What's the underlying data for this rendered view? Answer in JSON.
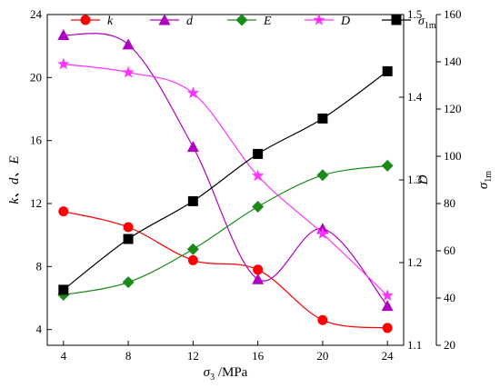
{
  "chart_data": {
    "type": "line",
    "x": [
      4,
      8,
      12,
      16,
      20,
      24
    ],
    "xlim": [
      3,
      25
    ],
    "xticks": [
      4,
      8,
      12,
      16,
      20,
      24
    ],
    "xlabel_main": "σ",
    "xlabel_sub": "3",
    "xlabel_unit": " /MPa",
    "axes": {
      "left": {
        "label": "k、d、E",
        "range": [
          3,
          24
        ],
        "ticks": [
          4,
          8,
          12,
          16,
          20,
          24
        ]
      },
      "right1": {
        "label": "D",
        "range": [
          1.1,
          1.5
        ],
        "ticks": [
          "1.1",
          "1.2",
          "1.3",
          "1.4",
          "1.5"
        ]
      },
      "right2": {
        "label_main": "σ",
        "label_sub": "1m",
        "range": [
          20,
          160
        ],
        "ticks": [
          20,
          40,
          60,
          80,
          100,
          120,
          140,
          160
        ]
      }
    },
    "series": [
      {
        "name": "k",
        "axis": "left",
        "color": "#ff0000",
        "marker": "circle",
        "values": [
          11.5,
          10.5,
          8.4,
          7.8,
          4.6,
          4.1
        ]
      },
      {
        "name": "d",
        "axis": "left",
        "color": "#b000c0",
        "marker": "triangle",
        "values": [
          22.7,
          22.1,
          15.6,
          7.2,
          10.4,
          5.5
        ]
      },
      {
        "name": "E",
        "axis": "left",
        "color": "#1a8a1a",
        "marker": "diamond",
        "values": [
          6.2,
          7.0,
          9.1,
          11.8,
          13.8,
          14.4
        ]
      },
      {
        "name": "D",
        "axis": "right1",
        "color": "#ff33ff",
        "marker": "star",
        "values": [
          1.44,
          1.43,
          1.405,
          1.305,
          1.235,
          1.16
        ]
      },
      {
        "name": "σ",
        "name_sub": "1m",
        "axis": "right2",
        "color": "#000000",
        "marker": "square",
        "values": [
          43.5,
          65,
          81,
          101,
          116,
          136
        ]
      }
    ],
    "legend": "top-inside",
    "grid": false
  }
}
